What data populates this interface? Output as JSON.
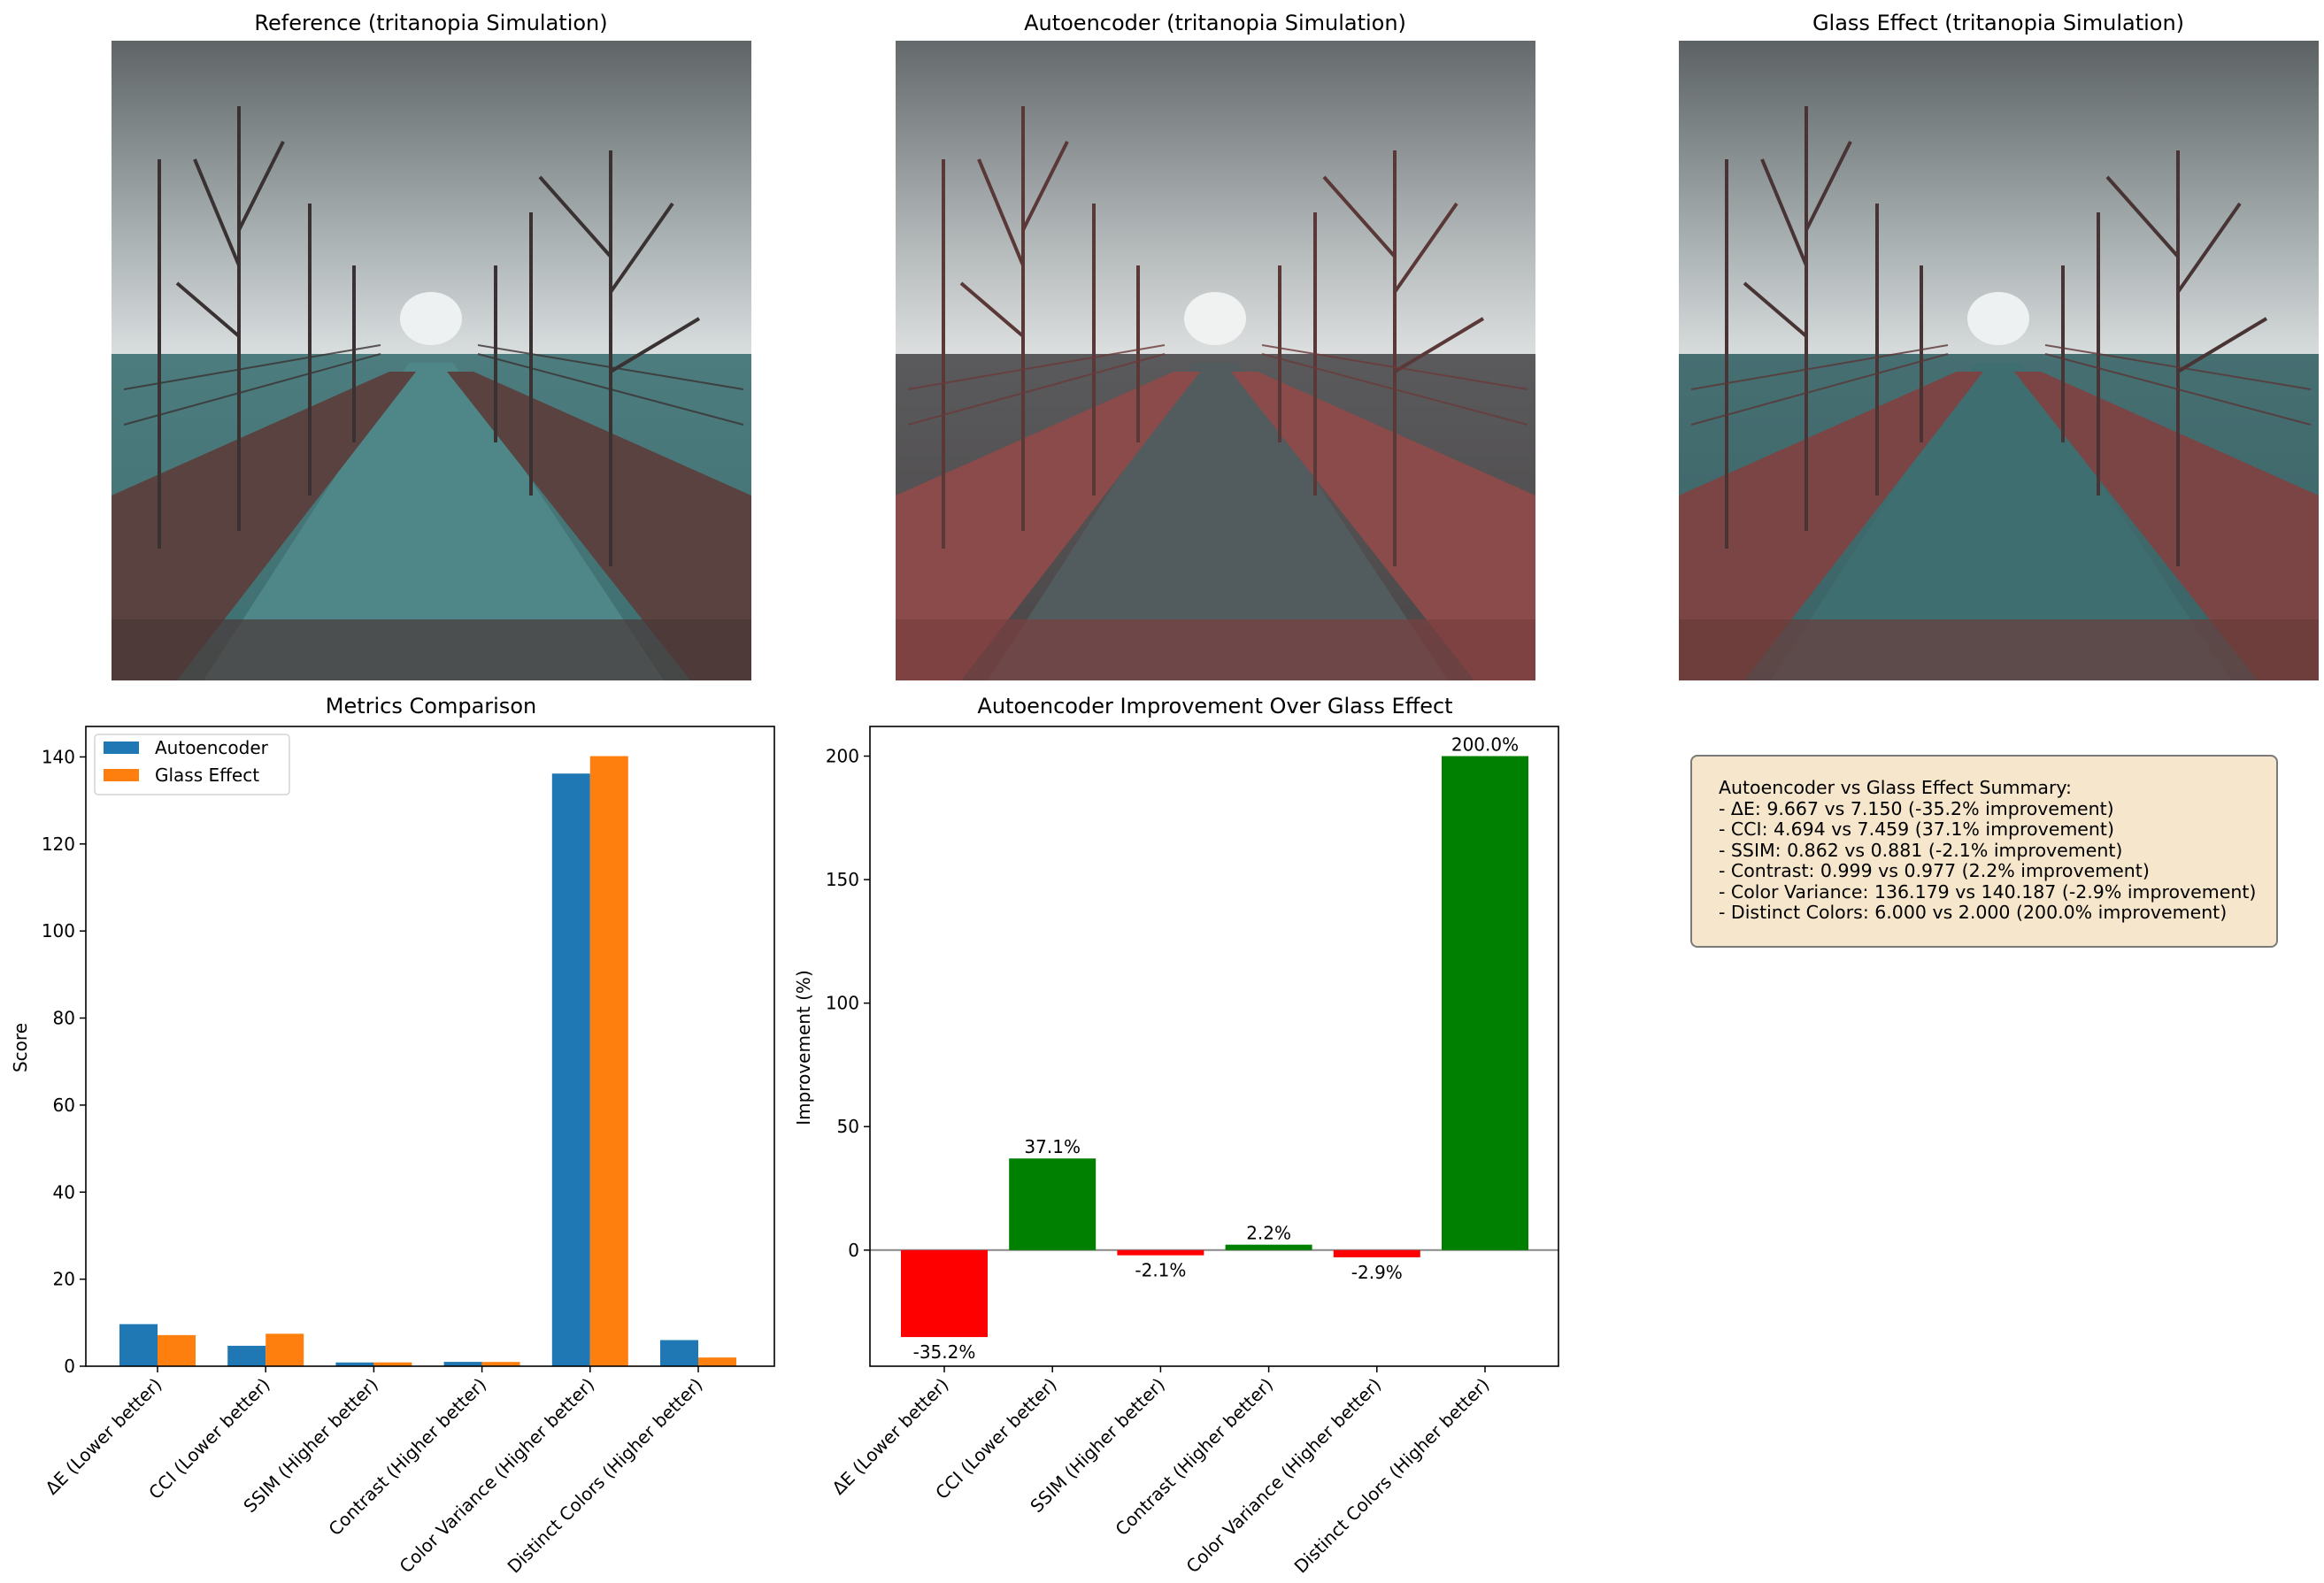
{
  "images": {
    "reference_title": "Reference (tritanopia Simulation)",
    "autoencoder_title": "Autoencoder (tritanopia Simulation)",
    "glass_title": "Glass Effect (tritanopia Simulation)"
  },
  "colors": {
    "autoencoder": "#1f77b4",
    "glass_effect": "#ff7f0e",
    "positive": "#008000",
    "negative": "#ff0000"
  },
  "chart_data": [
    {
      "type": "bar",
      "title": "Metrics Comparison",
      "xlabel": "",
      "ylabel": "Score",
      "categories": [
        "ΔE (Lower better)",
        "CCI (Lower better)",
        "SSIM (Higher better)",
        "Contrast (Higher better)",
        "Color Variance (Higher better)",
        "Distinct Colors (Higher better)"
      ],
      "series": [
        {
          "name": "Autoencoder",
          "values": [
            9.667,
            4.694,
            0.862,
            0.999,
            136.179,
            6.0
          ]
        },
        {
          "name": "Glass Effect",
          "values": [
            7.15,
            7.459,
            0.881,
            0.977,
            140.187,
            2.0
          ]
        }
      ],
      "ylim": [
        0,
        147
      ],
      "yticks": [
        0,
        20,
        40,
        60,
        80,
        100,
        120,
        140
      ],
      "legend": "top-left",
      "grid": false
    },
    {
      "type": "bar",
      "title": "Autoencoder Improvement Over Glass Effect",
      "xlabel": "",
      "ylabel": "Improvement (%)",
      "categories": [
        "ΔE (Lower better)",
        "CCI (Lower better)",
        "SSIM (Higher better)",
        "Contrast (Higher better)",
        "Color Variance (Higher better)",
        "Distinct Colors (Higher better)"
      ],
      "values": [
        -35.2,
        37.1,
        -2.1,
        2.2,
        -2.9,
        200.0
      ],
      "data_labels": [
        "-35.2%",
        "37.1%",
        "-2.1%",
        "2.2%",
        "-2.9%",
        "200.0%"
      ],
      "ylim": [
        -47,
        212
      ],
      "yticks": [
        0,
        50,
        100,
        150,
        200
      ],
      "zero_line": true,
      "grid": false
    }
  ],
  "summary": {
    "lines": [
      "Autoencoder vs Glass Effect Summary:",
      "- ΔE: 9.667 vs 7.150 (-35.2% improvement)",
      "- CCI: 4.694 vs 7.459 (37.1% improvement)",
      "- SSIM: 0.862 vs 0.881 (-2.1% improvement)",
      "- Contrast: 0.999 vs 0.977 (2.2% improvement)",
      "- Color Variance: 136.179 vs 140.187 (-2.9% improvement)",
      "- Distinct Colors: 6.000 vs 2.000 (200.0% improvement)"
    ]
  }
}
